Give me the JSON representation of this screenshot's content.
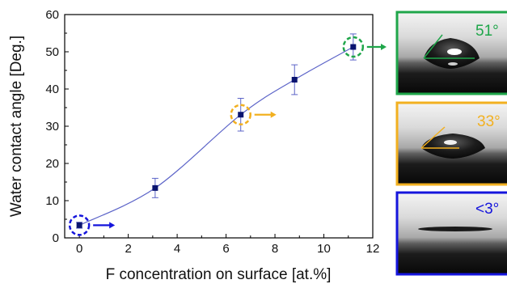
{
  "chart_data": {
    "type": "scatter",
    "title": "",
    "xlabel": "F concentration on surface [at.%]",
    "ylabel": "Water contact angle [Deg.]",
    "xlim": [
      -0.6,
      12
    ],
    "ylim": [
      0,
      60
    ],
    "xticks": [
      0,
      2,
      4,
      6,
      8,
      10,
      12
    ],
    "yticks": [
      0,
      10,
      20,
      30,
      40,
      50,
      60
    ],
    "grid": false,
    "series": [
      {
        "points": [
          {
            "x": 0.0,
            "y": 3.4,
            "err": 0.8
          },
          {
            "x": 3.1,
            "y": 13.4,
            "err": 2.6
          },
          {
            "x": 6.6,
            "y": 33.1,
            "err": 4.4
          },
          {
            "x": 8.8,
            "y": 42.5,
            "err": 4.0
          },
          {
            "x": 11.2,
            "y": 51.3,
            "err": 3.5
          }
        ],
        "color": "#0a1470",
        "fit_color": "#5c64c8"
      }
    ],
    "annotations": [
      {
        "point_index": 0,
        "circle_color": "#1515dc",
        "panel_index": 2
      },
      {
        "point_index": 2,
        "circle_color": "#f2b020",
        "panel_index": 1
      },
      {
        "point_index": 4,
        "circle_color": "#1fa64a",
        "panel_index": 0
      }
    ],
    "panels": [
      {
        "label": "51°",
        "color": "#1fa64a"
      },
      {
        "label": "33°",
        "color": "#f2b020"
      },
      {
        "label": "<3°",
        "color": "#1515dc"
      }
    ]
  }
}
